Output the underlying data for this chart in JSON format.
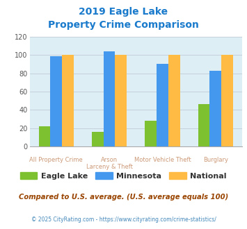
{
  "title": "2019 Eagle Lake\nProperty Crime Comparison",
  "cat_labels_line1": [
    "All Property Crime",
    "Arson",
    "Motor Vehicle Theft",
    "Burglary"
  ],
  "cat_labels_line2": [
    "",
    "Larceny & Theft",
    "",
    ""
  ],
  "eagle_lake": [
    22,
    16,
    28,
    46
  ],
  "minnesota": [
    99,
    104,
    90,
    83
  ],
  "national": [
    100,
    100,
    100,
    100
  ],
  "eagle_lake_color": "#7dc030",
  "minnesota_color": "#4499ee",
  "national_color": "#ffbb44",
  "title_color": "#1a7acc",
  "ylabel_ticks": [
    0,
    20,
    40,
    60,
    80,
    100,
    120
  ],
  "ylim": [
    0,
    120
  ],
  "bg_color": "#ddeef5",
  "legend_labels": [
    "Eagle Lake",
    "Minnesota",
    "National"
  ],
  "footnote1": "Compared to U.S. average. (U.S. average equals 100)",
  "footnote2": "© 2025 CityRating.com - https://www.cityrating.com/crime-statistics/",
  "footnote1_color": "#994400",
  "footnote2_color": "#4488bb",
  "bar_width": 0.22,
  "xlabel_color": "#cc9977",
  "grid_color": "#c0ccd8"
}
